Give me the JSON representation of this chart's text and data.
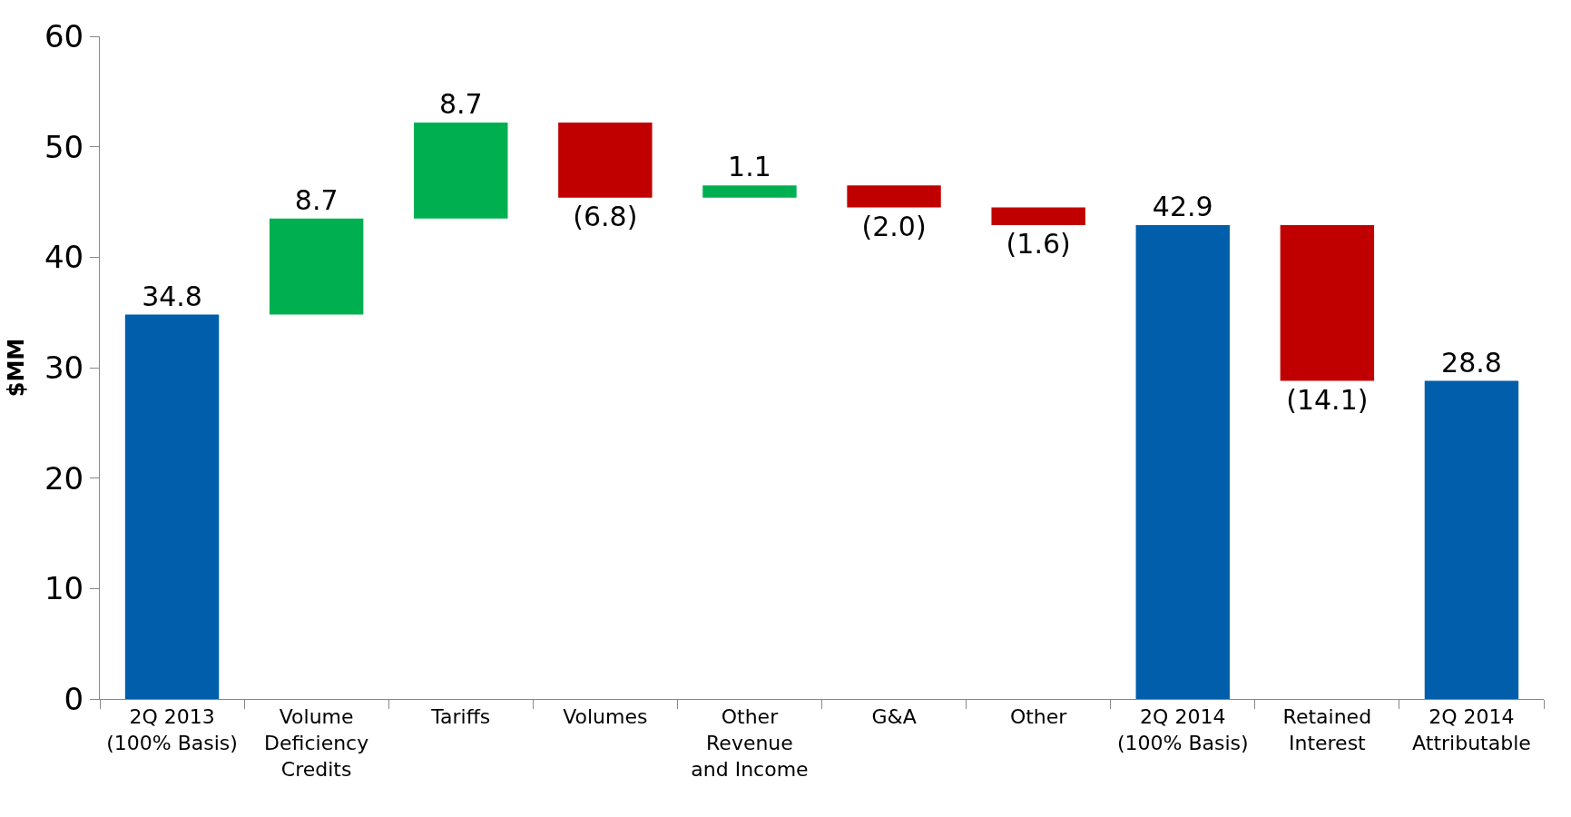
{
  "chart_data": {
    "type": "bar",
    "ylabel": "$MM",
    "categories": [
      "2Q 2013\n(100% Basis)",
      "Volume\nDeficiency\nCredits",
      "Tariffs",
      "Volumes",
      "Other\nRevenue\nand Income",
      "G&A",
      "Other",
      "2Q 2014\n(100% Basis)",
      "Retained\nInterest",
      "2Q 2014\nAttributable"
    ],
    "values": [
      34.8,
      8.7,
      8.7,
      -6.8,
      1.1,
      -2.0,
      -1.6,
      42.9,
      -14.1,
      28.8
    ],
    "base": [
      0,
      34.8,
      43.5,
      52.2,
      45.4,
      46.5,
      44.5,
      0,
      42.9,
      0
    ],
    "colors": [
      "#005eaa",
      "#00b050",
      "#00b050",
      "#c00000",
      "#00b050",
      "#c00000",
      "#c00000",
      "#005eaa",
      "#c00000",
      "#005eaa"
    ],
    "value_labels": [
      "34.8",
      "8.7",
      "8.7",
      "(6.8)",
      "1.1",
      "(2.0)",
      "(1.6)",
      "42.9",
      "(14.1)",
      "28.8"
    ],
    "ylim": [
      0,
      60
    ],
    "yticks": [
      0,
      10,
      20,
      30,
      40,
      50,
      60
    ],
    "legend": false
  }
}
